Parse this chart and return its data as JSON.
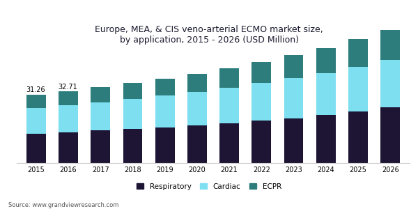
{
  "title": "Europe, MEA, & CIS veno-arterial ECMO market size,\nby application, 2015 - 2026 (USD Million)",
  "years": [
    2015,
    2016,
    2017,
    2018,
    2019,
    2020,
    2021,
    2022,
    2023,
    2024,
    2025,
    2026
  ],
  "respiratory": [
    13.5,
    14.0,
    14.8,
    15.5,
    16.2,
    17.2,
    18.2,
    19.3,
    20.5,
    21.8,
    23.5,
    25.3
  ],
  "cardiac": [
    11.5,
    12.3,
    13.0,
    13.8,
    14.5,
    15.3,
    16.2,
    17.2,
    18.2,
    19.3,
    20.5,
    21.8
  ],
  "ecpr": [
    6.26,
    6.41,
    6.8,
    7.2,
    7.7,
    8.2,
    8.9,
    9.7,
    10.5,
    11.5,
    12.5,
    13.7
  ],
  "annotations": {
    "2015": "31.26",
    "2016": "32.71"
  },
  "colors": {
    "respiratory": "#1e1535",
    "cardiac": "#7ddff0",
    "ecpr": "#2d7d7d"
  },
  "ylim": [
    0,
    62
  ],
  "source": "Source: www.grandviewresearch.com",
  "legend_labels": [
    "Respiratory",
    "Cardiac",
    "ECPR"
  ],
  "background_color": "#ffffff",
  "title_fontsize": 9,
  "bar_width": 0.6,
  "header_color": "#5c2d6e"
}
